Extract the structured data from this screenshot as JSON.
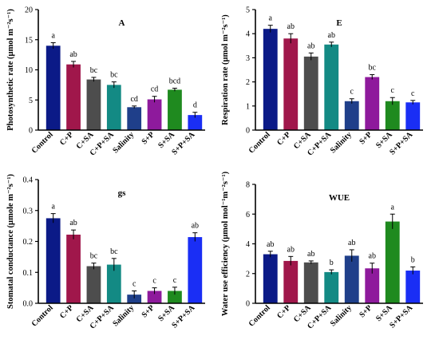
{
  "chart_data": [
    {
      "type": "bar",
      "title": "A",
      "ylabel": "Photosynthetic rate (µmol m⁻²s⁻¹)",
      "ylim": [
        0,
        20
      ],
      "yticks": [
        0,
        5,
        10,
        15,
        20
      ],
      "categories": [
        "Control",
        "C+P",
        "C+SA",
        "C+P+SA",
        "Salinity",
        "S+P",
        "S+SA",
        "S+P+SA"
      ],
      "values": [
        14.0,
        10.9,
        8.4,
        7.5,
        3.8,
        5.1,
        6.7,
        2.5
      ],
      "errors": [
        0.5,
        0.5,
        0.35,
        0.5,
        0.2,
        0.5,
        0.25,
        0.45
      ],
      "letters": [
        "a",
        "ab",
        "bc",
        "bc",
        "cd",
        "cd",
        "bcd",
        "d"
      ],
      "colors": [
        "#0b1a87",
        "#a0174b",
        "#4d4d4d",
        "#138a84",
        "#1f3f8a",
        "#8e1a9c",
        "#1f8a1f",
        "#1a2ef5"
      ]
    },
    {
      "type": "bar",
      "title": "E",
      "ylabel": "Respiration rate (µmol m⁻²s⁻¹)",
      "ylim": [
        0,
        5
      ],
      "yticks": [
        0,
        1,
        2,
        3,
        4,
        5
      ],
      "categories": [
        "Control",
        "C+P",
        "C+SA",
        "C+P+SA",
        "Salinity",
        "S+P",
        "S+SA",
        "S+P+SA"
      ],
      "values": [
        4.2,
        3.8,
        3.05,
        3.55,
        1.2,
        2.2,
        1.2,
        1.15
      ],
      "errors": [
        0.15,
        0.2,
        0.15,
        0.1,
        0.1,
        0.1,
        0.15,
        0.08
      ],
      "letters": [
        "a",
        "ab",
        "ab",
        "ab",
        "c",
        "bc",
        "c",
        "c"
      ],
      "colors": [
        "#0b1a87",
        "#a0174b",
        "#4d4d4d",
        "#138a84",
        "#1f3f8a",
        "#8e1a9c",
        "#1f8a1f",
        "#1a2ef5"
      ]
    },
    {
      "type": "bar",
      "title": "gs",
      "ylabel": "Stomatal conductance (µmole m⁻²s⁻¹)",
      "ylim": [
        0,
        0.4
      ],
      "yticks": [
        0.0,
        0.1,
        0.2,
        0.3,
        0.4
      ],
      "categories": [
        "Control",
        "C+P",
        "C+SA",
        "C+P+SA",
        "Salinity",
        "S+P",
        "S+SA",
        "S+P+SA"
      ],
      "values": [
        0.275,
        0.222,
        0.12,
        0.125,
        0.028,
        0.04,
        0.04,
        0.214
      ],
      "errors": [
        0.015,
        0.015,
        0.01,
        0.02,
        0.012,
        0.01,
        0.012,
        0.014
      ],
      "letters": [
        "a",
        "ab",
        "bc",
        "bc",
        "c",
        "c",
        "c",
        "ab"
      ],
      "colors": [
        "#0b1a87",
        "#a0174b",
        "#4d4d4d",
        "#138a84",
        "#1f3f8a",
        "#8e1a9c",
        "#1f8a1f",
        "#1a2ef5"
      ]
    },
    {
      "type": "bar",
      "title": "WUE",
      "ylabel": "Water use efficiency (µmol mol⁻¹m⁻²s⁻¹)",
      "ylim": [
        0,
        8
      ],
      "yticks": [
        0,
        2,
        4,
        6,
        8
      ],
      "categories": [
        "Control",
        "C+P",
        "C+SA",
        "C+P+SA",
        "Salinity",
        "S+P",
        "S+SA",
        "S+P+SA"
      ],
      "values": [
        3.3,
        2.85,
        2.75,
        2.1,
        3.2,
        2.35,
        5.5,
        2.2
      ],
      "errors": [
        0.2,
        0.3,
        0.1,
        0.15,
        0.4,
        0.35,
        0.5,
        0.25
      ],
      "letters": [
        "ab",
        "ab",
        "ab",
        "b",
        "ab",
        "ab",
        "a",
        "b"
      ],
      "colors": [
        "#0b1a87",
        "#a0174b",
        "#4d4d4d",
        "#138a84",
        "#1f3f8a",
        "#8e1a9c",
        "#1f8a1f",
        "#1a2ef5"
      ]
    }
  ]
}
